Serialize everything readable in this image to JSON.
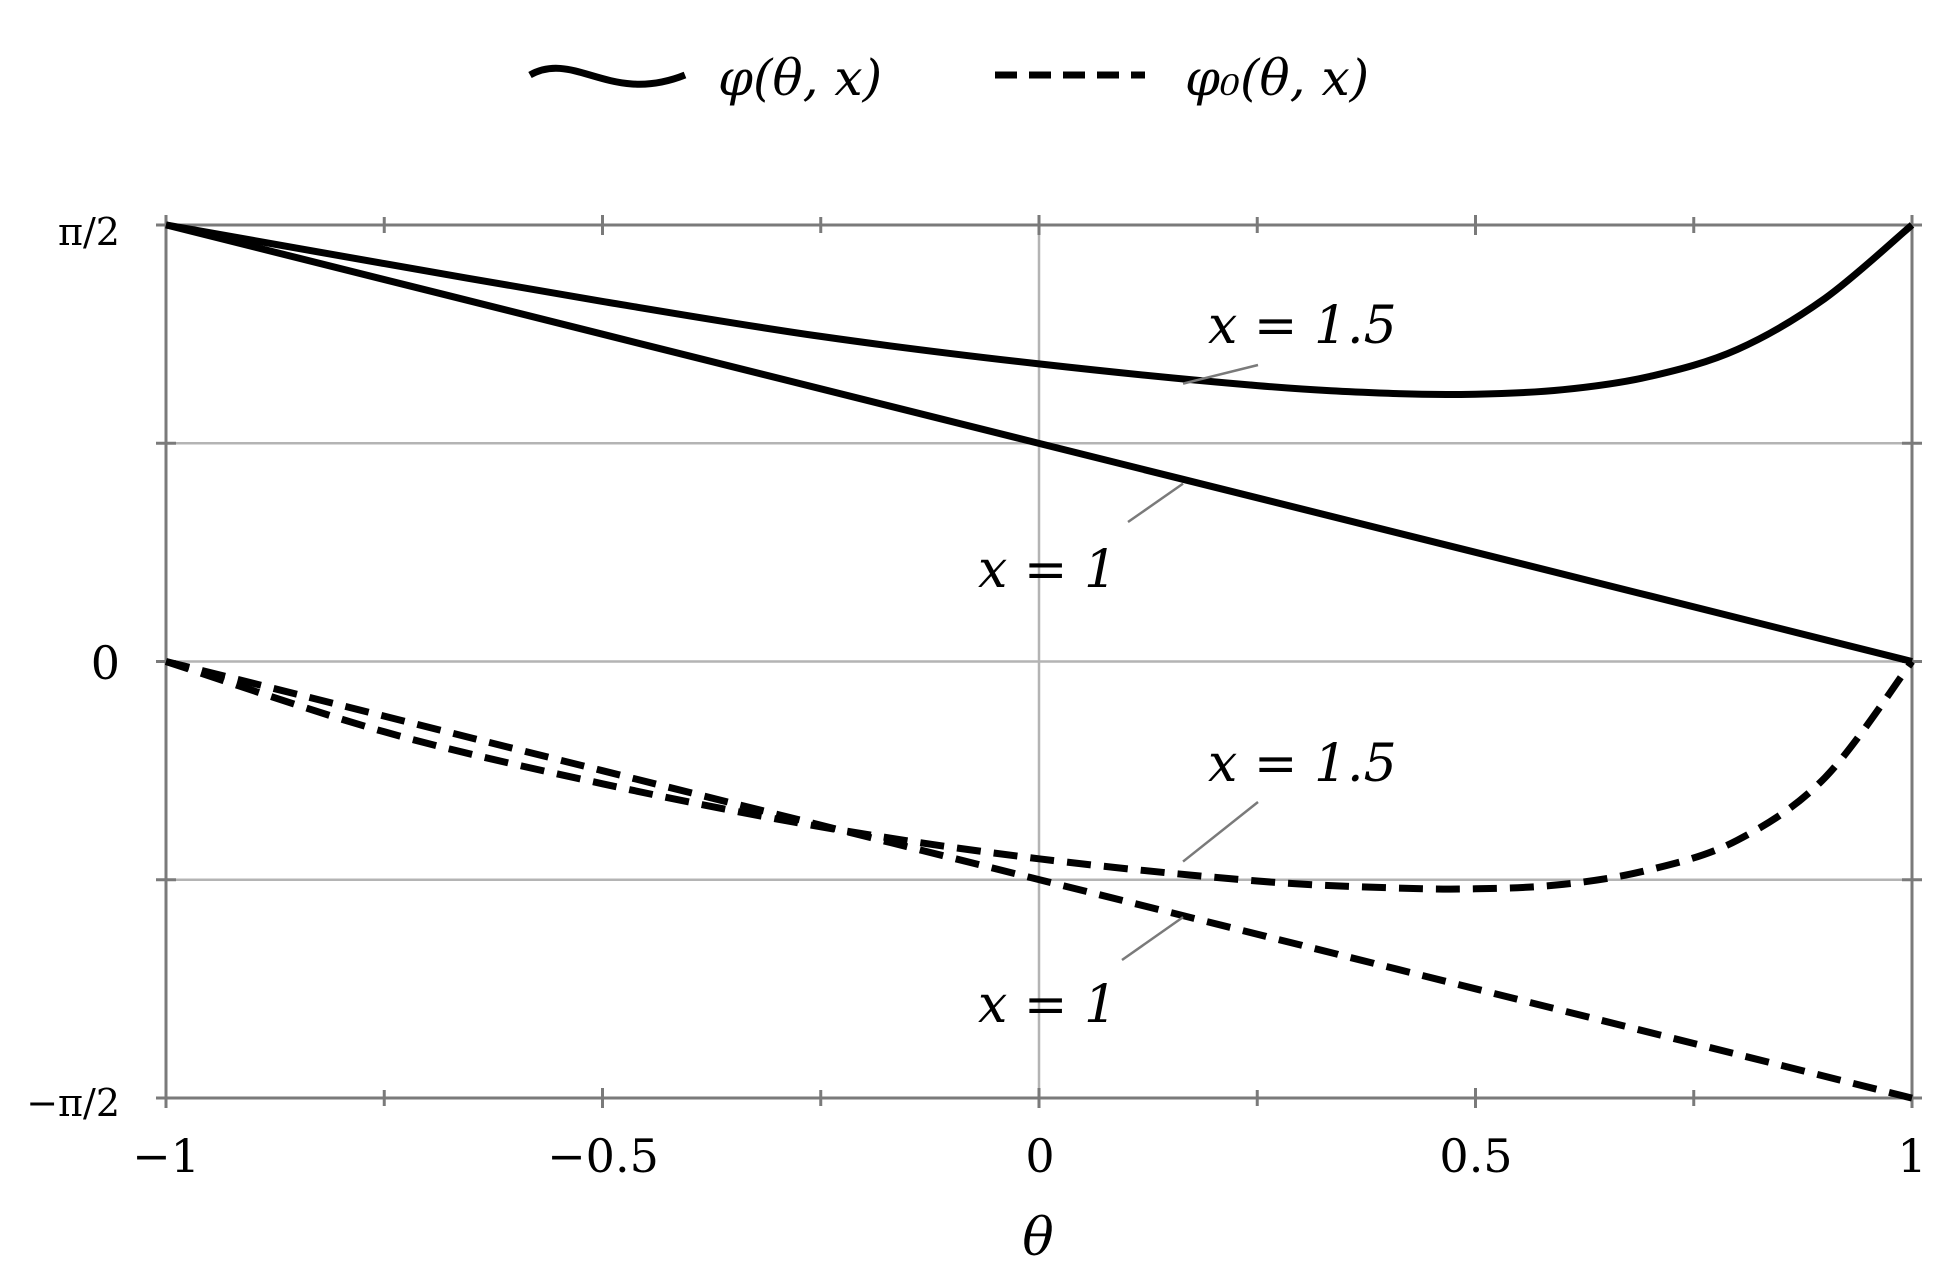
{
  "chart_data": {
    "type": "line",
    "title": "",
    "xlabel": "θ",
    "ylabel": "",
    "xlim": [
      -1,
      1
    ],
    "ylim": [
      -1.5708,
      1.5708
    ],
    "grid": true,
    "legend": {
      "placement": "top-center",
      "entries": [
        {
          "label": "φ(θ, x)",
          "style": "solid"
        },
        {
          "label": "φ₀(θ, x)",
          "style": "dashed"
        }
      ]
    },
    "x_ticks": [
      {
        "value": -1,
        "label": "−1"
      },
      {
        "value": -0.5,
        "label": "−0.5"
      },
      {
        "value": 0,
        "label": "0"
      },
      {
        "value": 0.5,
        "label": "0.5"
      },
      {
        "value": 1,
        "label": "1"
      }
    ],
    "y_ticks": [
      {
        "value": 1.5708,
        "label": "π/2"
      },
      {
        "value": 0,
        "label": "0"
      },
      {
        "value": -1.5708,
        "label": "−π/2"
      }
    ],
    "series": [
      {
        "legend_entry": "φ(θ, x)",
        "style": "solid",
        "annotation": "x = 1.5",
        "x": [
          -1,
          -0.75,
          -0.5,
          -0.25,
          0,
          0.25,
          0.4,
          0.5,
          0.6,
          0.7,
          0.8,
          0.9,
          1
        ],
        "y": [
          1.571,
          1.432,
          1.296,
          1.17,
          1.071,
          0.993,
          0.965,
          0.962,
          0.978,
          1.026,
          1.123,
          1.306,
          1.571
        ]
      },
      {
        "legend_entry": "φ(θ, x)",
        "style": "solid",
        "annotation": "x = 1",
        "x": [
          -1,
          -0.5,
          0,
          0.5,
          1
        ],
        "y": [
          1.571,
          1.178,
          0.785,
          0.393,
          0
        ]
      },
      {
        "legend_entry": "φ₀(θ, x)",
        "style": "dashed",
        "annotation": "x = 1.5",
        "x": [
          -1,
          -0.75,
          -0.5,
          -0.25,
          0,
          0.25,
          0.4,
          0.5,
          0.6,
          0.7,
          0.8,
          0.9,
          1
        ],
        "y": [
          0,
          -0.253,
          -0.44,
          -0.595,
          -0.71,
          -0.79,
          -0.814,
          -0.818,
          -0.802,
          -0.749,
          -0.643,
          -0.419,
          0
        ]
      },
      {
        "legend_entry": "φ₀(θ, x)",
        "style": "dashed",
        "annotation": "x = 1",
        "x": [
          -1,
          -0.5,
          0,
          0.5,
          1
        ],
        "y": [
          0,
          -0.393,
          -0.785,
          -1.178,
          -1.571
        ]
      }
    ]
  }
}
